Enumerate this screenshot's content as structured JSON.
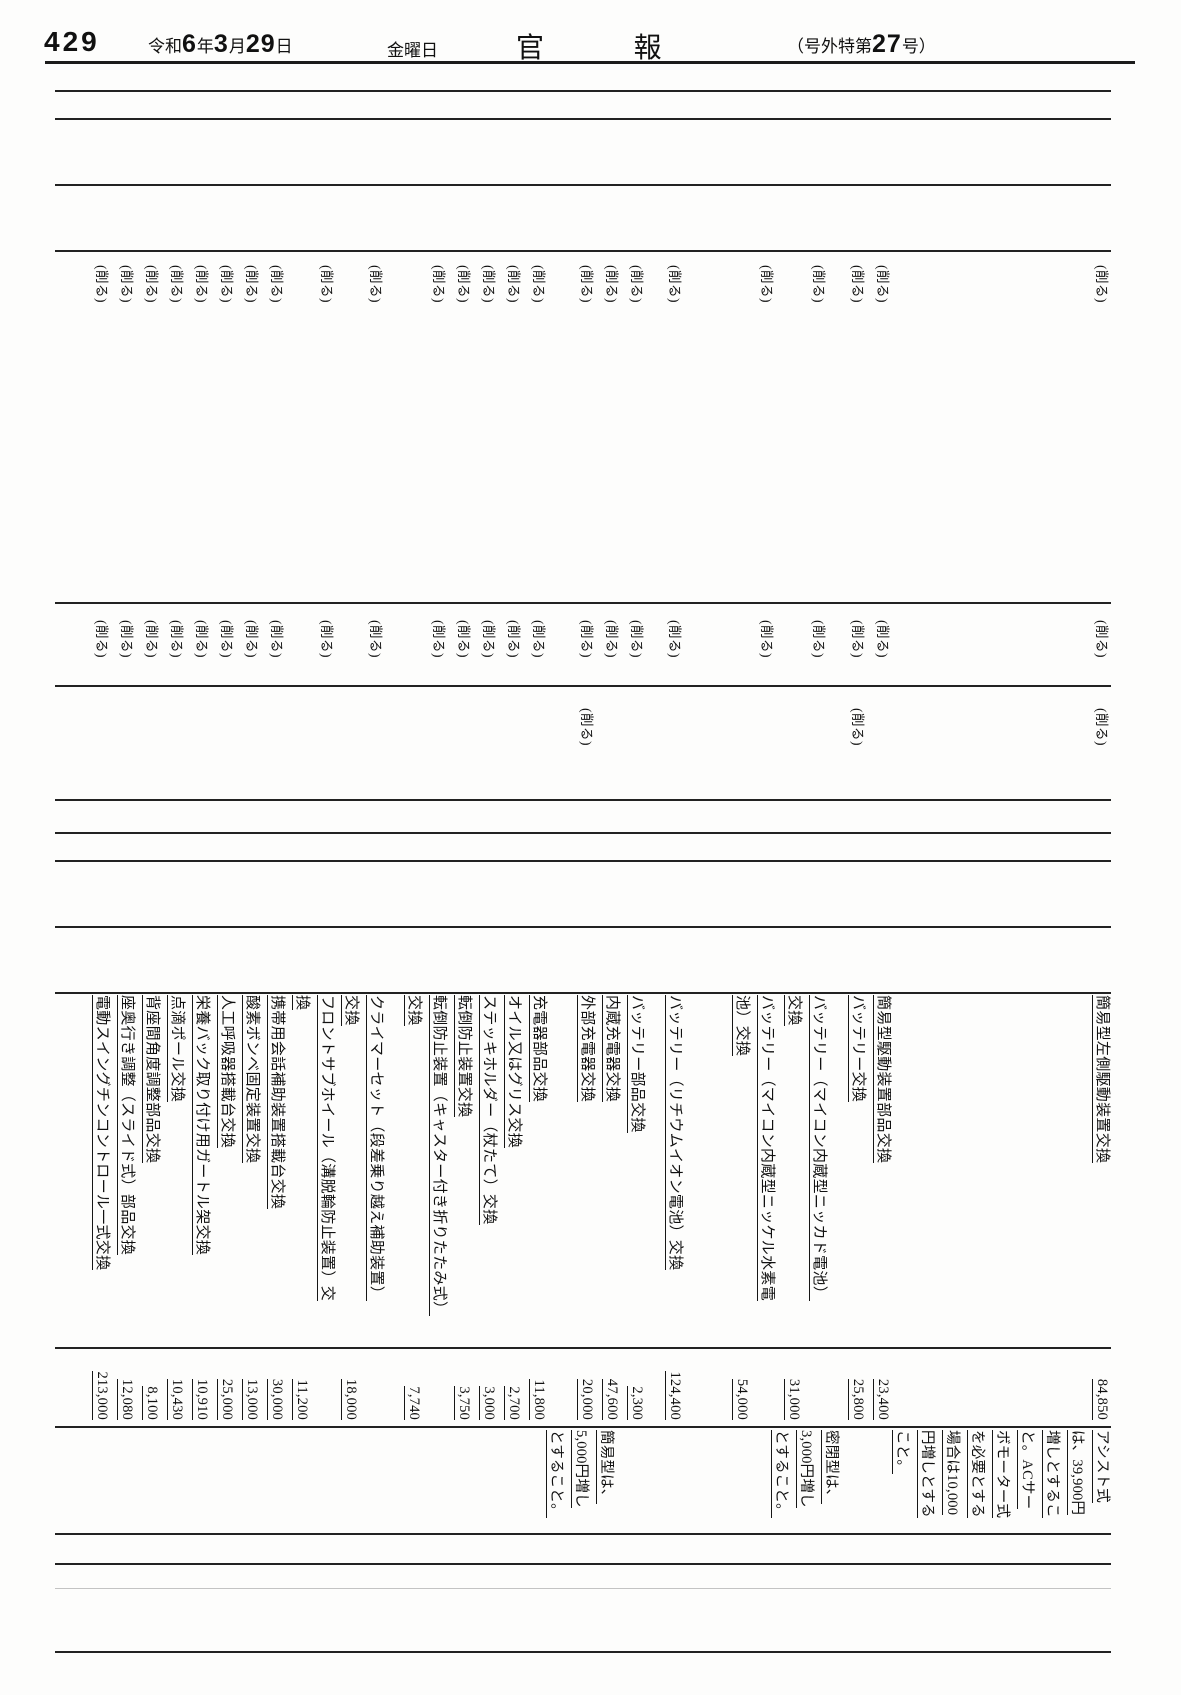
{
  "page": {
    "page_number": "429",
    "date": "令和6年3月29日",
    "date_segments": [
      {
        "text": "令和",
        "size": "s"
      },
      {
        "text": "6",
        "size": "l"
      },
      {
        "text": "年",
        "size": "s"
      },
      {
        "text": "3",
        "size": "l"
      },
      {
        "text": "月",
        "size": "s"
      },
      {
        "text": "29",
        "size": "l"
      },
      {
        "text": "日",
        "size": "s"
      }
    ],
    "weekday": "金曜日",
    "publication": "官報",
    "issue": "（号外特第27号）",
    "issue_segments": [
      {
        "text": "（号外特第",
        "size": "s"
      },
      {
        "text": "27",
        "size": "l"
      },
      {
        "text": "号）",
        "size": "s"
      }
    ]
  },
  "table": {
    "orientation_note": "landscape table rotated 90° clockwise on the page",
    "deletion_marker": "(削る)",
    "rows": [
      {
        "name": "簡易型左側駆動装置交換",
        "lines": [
          "簡易型左側駆動装置交換"
        ],
        "price": "84,850",
        "remark": "アシスト式は、39,900円増しとすること。ACサーボモーター式を必要とする場合は10,000円増しとすること。",
        "remark_lines": [
          "アシスト式",
          "は、39,900円",
          "増しとするこ",
          "と。ACサー",
          "ボモーター式",
          "を必要とする",
          "場合は10,000",
          "円増しとする",
          "こと。"
        ],
        "extra_deletion": true
      },
      {
        "name": "簡易型駆動装置部品交換",
        "lines": [
          "簡易型駆動装置部品交換"
        ],
        "price": "23,400"
      },
      {
        "name": "バッテリー交換",
        "lines": [
          "バッテリー交換"
        ],
        "price": "25,800",
        "remark": "密閉型は、3,000円増しとすること。",
        "remark_lines": [
          "密閉型は、",
          "3,000円増し",
          "とすること。"
        ],
        "extra_deletion": true
      },
      {
        "name": "バッテリー（マイコン内蔵型ニッカド電池）交換",
        "lines": [
          "バッテリー（マイコン内蔵型ニッカド電池）",
          "交換"
        ],
        "price": "31,000"
      },
      {
        "name": "バッテリー（マイコン内蔵型ニッケル水素電池）交換",
        "lines": [
          "バッテリー（マイコン内蔵型ニッケル水素電",
          "池）交換"
        ],
        "price": "54,000"
      },
      {
        "name": "バッテリー（リチウムイオン電池）交換",
        "lines": [
          "バッテリー（リチウムイオン電池）交換"
        ],
        "price": "124,400"
      },
      {
        "name": "バッテリー部品交換",
        "lines": [
          "バッテリー部品交換"
        ],
        "price": "2,300"
      },
      {
        "name": "内蔵充電器交換",
        "lines": [
          "内蔵充電器交換"
        ],
        "price": "47,600"
      },
      {
        "name": "外部充電器交換",
        "lines": [
          "外部充電器交換"
        ],
        "price": "20,000",
        "remark": "簡易型は、5,000円増しとすること。",
        "remark_lines": [
          "簡易型は、",
          "5,000円増し",
          "とすること。"
        ],
        "extra_deletion": true
      },
      {
        "name": "充電器部品交換",
        "lines": [
          "充電器部品交換"
        ],
        "price": "11,800"
      },
      {
        "name": "オイル又はグリス交換",
        "lines": [
          "オイル又はグリス交換"
        ],
        "price": "2,700"
      },
      {
        "name": "ステッキホルダー（杖たて）交換",
        "lines": [
          "ステッキホルダー（杖たて）交換"
        ],
        "price": "3,000"
      },
      {
        "name": "転倒防止装置交換",
        "lines": [
          "転倒防止装置交換"
        ],
        "price": "3,750"
      },
      {
        "name": "転倒防止装置（キャスター付き折りたたみ式）交換",
        "lines": [
          "転倒防止装置（キャスター付き折りたたみ式）",
          "交換"
        ],
        "price": "7,740"
      },
      {
        "name": "クライマーセット（段差乗り越え補助装置）交換",
        "lines": [
          "クライマーセット（段差乗り越え補助装置）",
          "交換"
        ],
        "price": "18,000"
      },
      {
        "name": "フロントサブホイール（溝脱輪防止装置）交換",
        "lines": [
          "フロントサブホイール（溝脱輪防止装置）交",
          "換"
        ],
        "price": "11,200"
      },
      {
        "name": "携帯用会話補助装置搭載台交換",
        "lines": [
          "携帯用会話補助装置搭載台交換"
        ],
        "price": "30,000"
      },
      {
        "name": "酸素ボンベ固定装置交換",
        "lines": [
          "酸素ボンベ固定装置交換"
        ],
        "price": "13,000"
      },
      {
        "name": "人工呼吸器搭載台交換",
        "lines": [
          "人工呼吸器搭載台交換"
        ],
        "price": "25,000"
      },
      {
        "name": "栄養バック取り付け用ガートル架交換",
        "lines": [
          "栄養バック取り付け用ガートル架交換"
        ],
        "price": "10,910"
      },
      {
        "name": "点滴ポール交換",
        "lines": [
          "点滴ポール交換"
        ],
        "price": "10,430"
      },
      {
        "name": "背座間角度調整部品交換",
        "lines": [
          "背座間角度調整部品交換"
        ],
        "price": "8,100"
      },
      {
        "name": "座奥行き調整（スライド式）部品交換",
        "lines": [
          "座奥行き調整（スライド式）部品交換"
        ],
        "price": "12,080"
      },
      {
        "name": "電動スイングチンコントロール一式交換",
        "lines": [
          "電動スイングチンコントロール一式交換"
        ],
        "price": "213,000"
      }
    ]
  }
}
